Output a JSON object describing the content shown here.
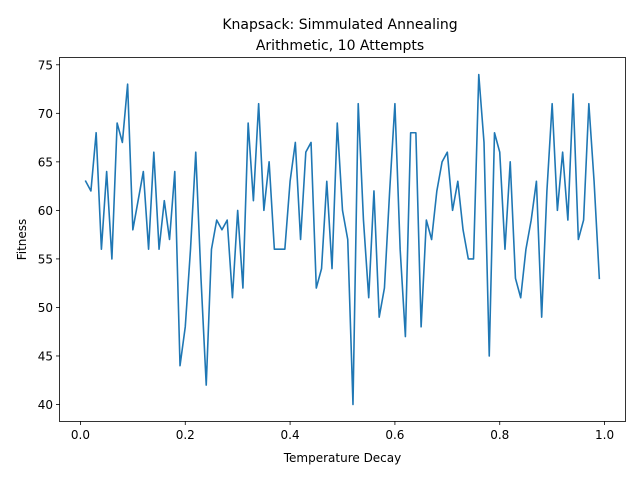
{
  "chart_data": {
    "type": "line",
    "title": "Knapsack: Simmulated Annealing",
    "subtitle": "Arithmetic, 10 Attempts",
    "xlabel": "Temperature Decay",
    "ylabel": "Fitness",
    "xlim": [
      -0.039,
      1.039
    ],
    "ylim": [
      38.3,
      75.7
    ],
    "xticks": [
      0.0,
      0.2,
      0.4,
      0.6,
      0.8,
      1.0
    ],
    "xtick_labels": [
      "0.0",
      "0.2",
      "0.4",
      "0.6",
      "0.8",
      "1.0"
    ],
    "yticks": [
      40,
      45,
      50,
      55,
      60,
      65,
      70,
      75
    ],
    "ytick_labels": [
      "40",
      "45",
      "50",
      "55",
      "60",
      "65",
      "70",
      "75"
    ],
    "grid": false,
    "series": [
      {
        "color": "#1f77b4",
        "x": [
          0.01,
          0.02,
          0.03,
          0.04,
          0.05,
          0.06,
          0.07,
          0.08,
          0.09,
          0.1,
          0.11,
          0.12,
          0.13,
          0.14,
          0.15,
          0.16,
          0.17,
          0.18,
          0.19,
          0.2,
          0.21,
          0.22,
          0.23,
          0.24,
          0.25,
          0.26,
          0.27,
          0.28,
          0.29,
          0.3,
          0.31,
          0.32,
          0.33,
          0.34,
          0.35,
          0.36,
          0.37,
          0.38,
          0.39,
          0.4,
          0.41,
          0.42,
          0.43,
          0.44,
          0.45,
          0.46,
          0.47,
          0.48,
          0.49,
          0.5,
          0.51,
          0.52,
          0.53,
          0.54,
          0.55,
          0.56,
          0.57,
          0.58,
          0.59,
          0.6,
          0.61,
          0.62,
          0.63,
          0.64,
          0.65,
          0.66,
          0.67,
          0.68,
          0.69,
          0.7,
          0.71,
          0.72,
          0.73,
          0.74,
          0.75,
          0.76,
          0.77,
          0.78,
          0.79,
          0.8,
          0.81,
          0.82,
          0.83,
          0.84,
          0.85,
          0.86,
          0.87,
          0.88,
          0.89,
          0.9,
          0.91,
          0.92,
          0.93,
          0.94,
          0.95,
          0.96,
          0.97,
          0.98,
          0.99
        ],
        "y": [
          63,
          62,
          68,
          56,
          64,
          55,
          69,
          67,
          73,
          58,
          61,
          64,
          56,
          66,
          56,
          61,
          57,
          64,
          44,
          48,
          56,
          66,
          53,
          42,
          56,
          59,
          58,
          59,
          51,
          60,
          52,
          69,
          61,
          71,
          60,
          65,
          56,
          56,
          56,
          63,
          67,
          57,
          66,
          67,
          52,
          54,
          63,
          54,
          69,
          60,
          57,
          40,
          71,
          59,
          51,
          62,
          49,
          52,
          62,
          71,
          56,
          47,
          68,
          68,
          48,
          59,
          57,
          62,
          65,
          66,
          60,
          63,
          58,
          55,
          55,
          74,
          67,
          45,
          68,
          66,
          56,
          65,
          53,
          51,
          56,
          59,
          63,
          49,
          62,
          71,
          60,
          66,
          59,
          72,
          57,
          59,
          71,
          63,
          53
        ]
      }
    ]
  }
}
